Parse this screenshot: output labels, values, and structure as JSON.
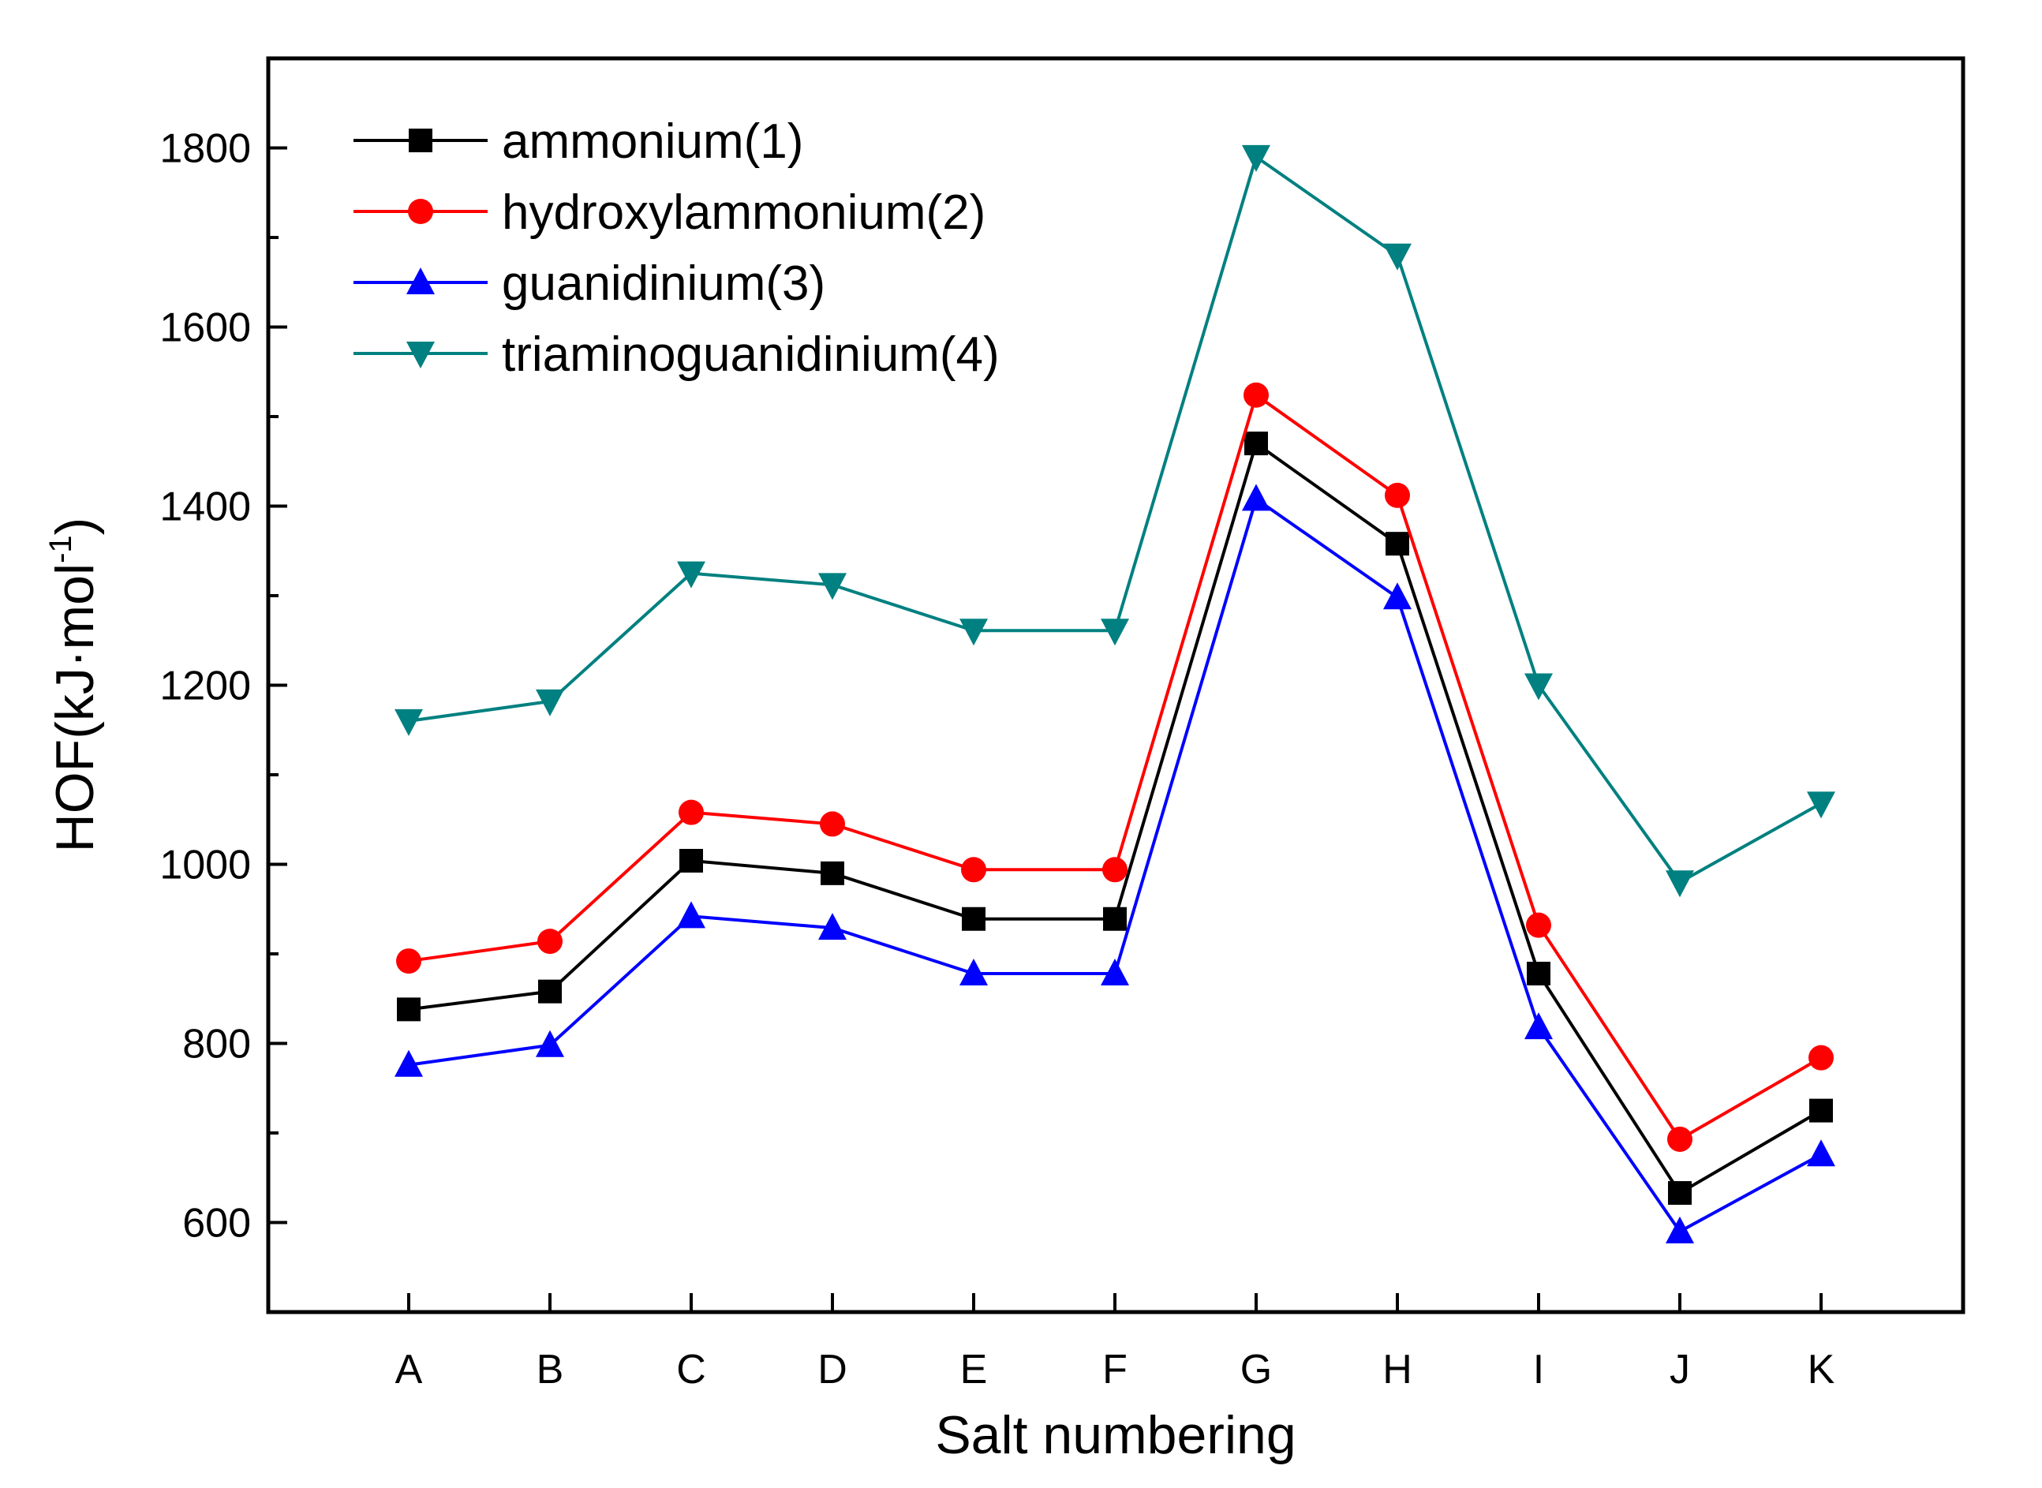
{
  "chart_data": {
    "type": "line",
    "title": "",
    "xlabel": "Salt numbering",
    "ylabel_main": "HOF(kJ·mol",
    "ylabel_sup": "-1",
    "ylabel_close": ")",
    "ylim": [
      500,
      1900
    ],
    "yticks": [
      "600",
      "800",
      "1000",
      "1200",
      "1400",
      "1600",
      "1800"
    ],
    "ytick_values": [
      600,
      800,
      1000,
      1200,
      1400,
      1600,
      1800
    ],
    "categories": [
      "A",
      "B",
      "C",
      "D",
      "E",
      "F",
      "G",
      "H",
      "I",
      "J",
      "K"
    ],
    "legend_position": "top-left",
    "grid": false,
    "series": [
      {
        "name": "ammonium(1)",
        "color": "#000000",
        "marker": "square",
        "values": [
          838,
          858,
          1004,
          990,
          939,
          939,
          1470,
          1358,
          878,
          633,
          725
        ]
      },
      {
        "name": "hydroxylammonium(2)",
        "color": "#ff0000",
        "marker": "circle",
        "values": [
          892,
          914,
          1058,
          1045,
          994,
          994,
          1524,
          1412,
          932,
          693,
          784
        ]
      },
      {
        "name": "guanidinium(3)",
        "color": "#0000ff",
        "marker": "triangle-up",
        "values": [
          776,
          798,
          942,
          929,
          878,
          878,
          1408,
          1298,
          818,
          590,
          676
        ]
      },
      {
        "name": "triaminoguanidinium(4)",
        "color": "#008080",
        "marker": "triangle-down",
        "values": [
          1160,
          1182,
          1325,
          1312,
          1261,
          1261,
          1790,
          1680,
          1200,
          980,
          1068
        ]
      }
    ]
  }
}
